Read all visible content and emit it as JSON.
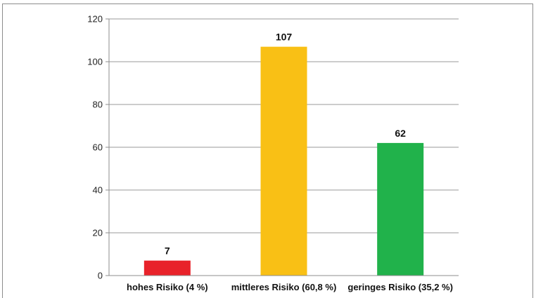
{
  "chart_data": {
    "type": "bar",
    "title": "",
    "xlabel": "",
    "ylabel": "",
    "categories": [
      "hohes Risiko (4 %)",
      "mittleres Risiko (60,8 %)",
      "geringes Risiko (35,2 %)"
    ],
    "values": [
      7,
      107,
      62
    ],
    "colors": [
      "#e8222a",
      "#f9c015",
      "#21b24b"
    ],
    "data_labels": [
      "7",
      "107",
      "62"
    ],
    "ylim": [
      0,
      120
    ],
    "yticks": [
      "0",
      "20",
      "40",
      "60",
      "80",
      "100",
      "120"
    ],
    "grid": true,
    "legend": "none"
  }
}
